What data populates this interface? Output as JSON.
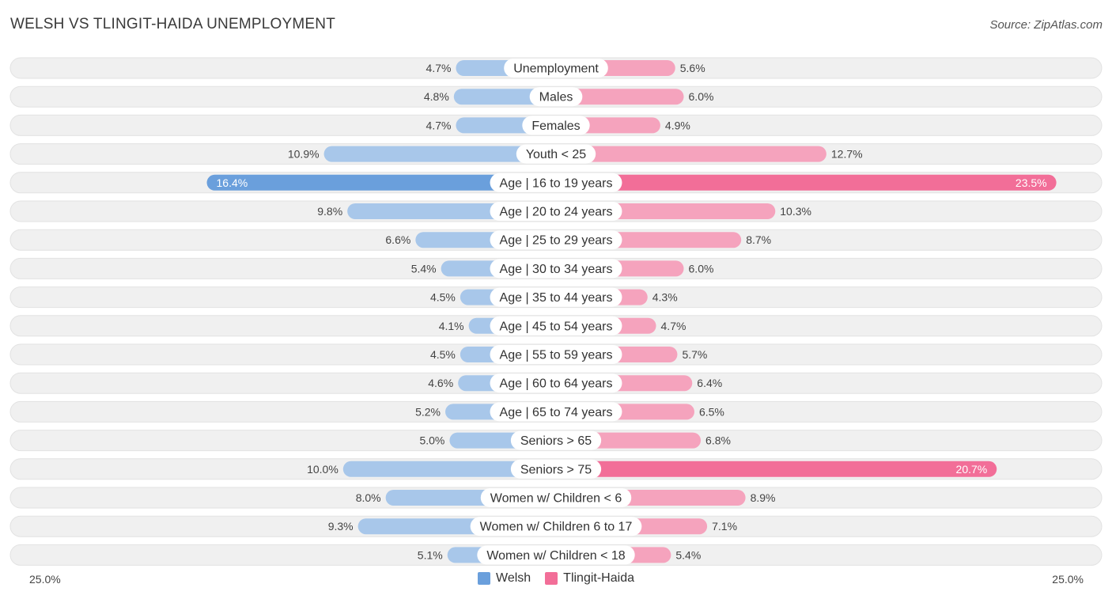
{
  "title": "WELSH VS TLINGIT-HAIDA UNEMPLOYMENT",
  "source": "Source: ZipAtlas.com",
  "colors": {
    "welsh": "#6a9fdc",
    "welsh_light": "#a8c7ea",
    "tlingit": "#f26e98",
    "tlingit_light": "#f5a3bd",
    "row_bg": "#f0f0f0"
  },
  "axis": {
    "left_label": "25.0%",
    "right_label": "25.0%"
  },
  "legend": {
    "welsh": "Welsh",
    "tlingit": "Tlingit-Haida"
  },
  "chart_data": {
    "type": "bar",
    "orientation": "horizontal-diverging",
    "title": "WELSH VS TLINGIT-HAIDA UNEMPLOYMENT",
    "xlim": [
      0,
      25
    ],
    "categories": [
      "Unemployment",
      "Males",
      "Females",
      "Youth < 25",
      "Age | 16 to 19 years",
      "Age | 20 to 24 years",
      "Age | 25 to 29 years",
      "Age | 30 to 34 years",
      "Age | 35 to 44 years",
      "Age | 45 to 54 years",
      "Age | 55 to 59 years",
      "Age | 60 to 64 years",
      "Age | 65 to 74 years",
      "Seniors > 65",
      "Seniors > 75",
      "Women w/ Children < 6",
      "Women w/ Children 6 to 17",
      "Women w/ Children < 18"
    ],
    "series": [
      {
        "name": "Welsh",
        "values": [
          4.7,
          4.8,
          4.7,
          10.9,
          16.4,
          9.8,
          6.6,
          5.4,
          4.5,
          4.1,
          4.5,
          4.6,
          5.2,
          5.0,
          10.0,
          8.0,
          9.3,
          5.1
        ],
        "labels": [
          "4.7%",
          "4.8%",
          "4.7%",
          "10.9%",
          "16.4%",
          "9.8%",
          "6.6%",
          "5.4%",
          "4.5%",
          "4.1%",
          "4.5%",
          "4.6%",
          "5.2%",
          "5.0%",
          "10.0%",
          "8.0%",
          "9.3%",
          "5.1%"
        ]
      },
      {
        "name": "Tlingit-Haida",
        "values": [
          5.6,
          6.0,
          4.9,
          12.7,
          23.5,
          10.3,
          8.7,
          6.0,
          4.3,
          4.7,
          5.7,
          6.4,
          6.5,
          6.8,
          20.7,
          8.9,
          7.1,
          5.4
        ],
        "labels": [
          "5.6%",
          "6.0%",
          "4.9%",
          "12.7%",
          "23.5%",
          "10.3%",
          "8.7%",
          "6.0%",
          "4.3%",
          "4.7%",
          "5.7%",
          "6.4%",
          "6.5%",
          "6.8%",
          "20.7%",
          "8.9%",
          "7.1%",
          "5.4%"
        ]
      }
    ],
    "legend_position": "bottom-center"
  }
}
